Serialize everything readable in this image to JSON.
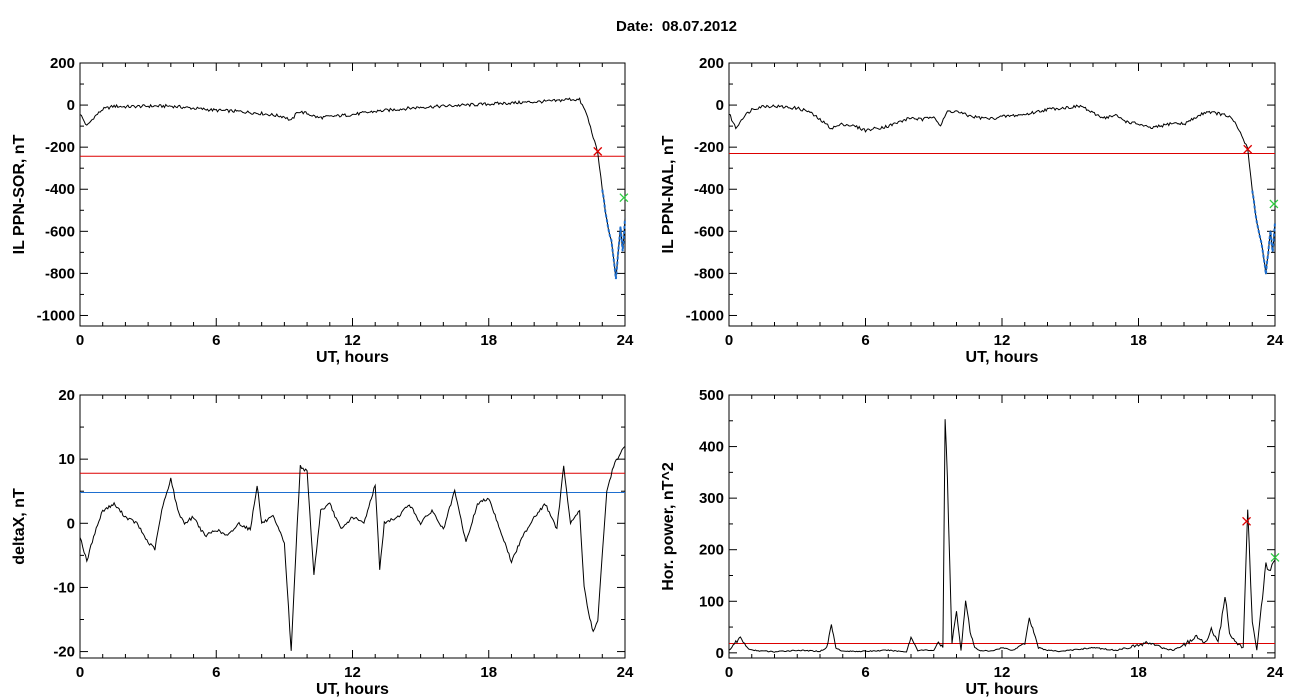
{
  "title": "Date:  08.07.2012",
  "colors": {
    "trace": "#000000",
    "threshold": "#dd0000",
    "blue_line": "#1e6fd0",
    "marker_red": "#dd0000",
    "marker_green": "#2ecc40"
  },
  "chart_data": [
    {
      "type": "line",
      "id": "sor",
      "xlabel": "UT, hours",
      "ylabel": "IL PPN-SOR, nT",
      "xlim": [
        0,
        24
      ],
      "ylim": [
        -1050,
        200
      ],
      "xticks": [
        0,
        6,
        12,
        18,
        24
      ],
      "yticks": [
        200,
        0,
        -200,
        -400,
        -600,
        -800,
        -1000
      ],
      "xtick_labels": [
        "0",
        "6",
        "12",
        "18",
        "24"
      ],
      "ytick_labels": [
        "200",
        "0",
        "-200",
        "-400",
        "-600",
        "-800",
        "-1000"
      ],
      "grid": false,
      "threshold": -243,
      "series": [
        {
          "x": [
            0,
            0.3,
            0.6,
            1,
            1.5,
            2,
            3,
            4,
            5,
            6,
            7,
            8,
            9,
            9.3,
            9.6,
            10,
            10.5,
            11,
            12,
            13,
            14,
            15,
            16,
            17,
            18,
            19,
            20,
            21,
            21.5,
            22,
            22.3,
            22.6,
            22.8,
            23,
            23.2,
            23.4,
            23.6,
            23.7,
            23.8,
            23.9,
            24
          ],
          "y": [
            -40,
            -100,
            -60,
            -20,
            -5,
            -8,
            -5,
            -5,
            -15,
            -25,
            -30,
            -40,
            -55,
            -75,
            -30,
            -40,
            -60,
            -55,
            -45,
            -30,
            -20,
            -10,
            -5,
            0,
            5,
            10,
            15,
            20,
            28,
            25,
            -40,
            -150,
            -230,
            -400,
            -550,
            -650,
            -820,
            -700,
            -580,
            -700,
            -540
          ]
        }
      ],
      "markers": [
        {
          "x": 22.8,
          "y": -220,
          "symbol": "x",
          "color": "red"
        },
        {
          "x": 23.95,
          "y": -440,
          "symbol": "x",
          "color": "green"
        }
      ]
    },
    {
      "type": "line",
      "id": "nal",
      "xlabel": "UT, hours",
      "ylabel": "IL PPN-NAL, nT",
      "xlim": [
        0,
        24
      ],
      "ylim": [
        -1050,
        200
      ],
      "xticks": [
        0,
        6,
        12,
        18,
        24
      ],
      "yticks": [
        200,
        0,
        -200,
        -400,
        -600,
        -800,
        -1000
      ],
      "xtick_labels": [
        "0",
        "6",
        "12",
        "18",
        "24"
      ],
      "ytick_labels": [
        "200",
        "0",
        "-200",
        "-400",
        "-600",
        "-800",
        "-1000"
      ],
      "grid": false,
      "threshold": -230,
      "series": [
        {
          "x": [
            0,
            0.3,
            0.6,
            1,
            1.5,
            2,
            2.5,
            3,
            3.5,
            4,
            4.5,
            5,
            5.5,
            6,
            6.5,
            7,
            7.5,
            8,
            8.5,
            9,
            9.3,
            9.6,
            10,
            10.5,
            11,
            11.5,
            12,
            13,
            14,
            15,
            15.5,
            16,
            16.5,
            17,
            17.5,
            18,
            18.5,
            19,
            19.5,
            20,
            20.5,
            21,
            21.5,
            22,
            22.3,
            22.6,
            22.8,
            23,
            23.2,
            23.4,
            23.6,
            23.7,
            23.8,
            23.9,
            24
          ],
          "y": [
            -40,
            -110,
            -60,
            -20,
            -5,
            -5,
            -10,
            -15,
            -30,
            -70,
            -110,
            -90,
            -100,
            -120,
            -110,
            -100,
            -80,
            -60,
            -70,
            -50,
            -100,
            -30,
            -30,
            -50,
            -60,
            -65,
            -55,
            -45,
            -20,
            -10,
            -5,
            -40,
            -60,
            -50,
            -80,
            -90,
            -110,
            -100,
            -85,
            -90,
            -60,
            -30,
            -40,
            -55,
            -95,
            -160,
            -210,
            -400,
            -560,
            -650,
            -800,
            -700,
            -600,
            -700,
            -560
          ]
        }
      ],
      "markers": [
        {
          "x": 22.8,
          "y": -210,
          "symbol": "x",
          "color": "red"
        },
        {
          "x": 23.95,
          "y": -470,
          "symbol": "x",
          "color": "green"
        }
      ]
    },
    {
      "type": "line",
      "id": "deltax",
      "xlabel": "UT, hours",
      "ylabel": "deltaX, nT",
      "xlim": [
        0,
        24
      ],
      "ylim": [
        -21,
        20
      ],
      "xticks": [
        0,
        6,
        12,
        18,
        24
      ],
      "yticks": [
        20,
        10,
        0,
        -10,
        -20
      ],
      "xtick_labels": [
        "0",
        "6",
        "12",
        "18",
        "24"
      ],
      "ytick_labels": [
        "20",
        "10",
        "0",
        "-10",
        "-20"
      ],
      "grid": false,
      "threshold": 7.8,
      "threshold2": 4.8,
      "series": [
        {
          "x": [
            0,
            0.3,
            0.6,
            1,
            1.5,
            2,
            2.5,
            3,
            3.3,
            3.6,
            4,
            4.3,
            4.6,
            5,
            5.5,
            6,
            6.5,
            7,
            7.5,
            7.8,
            8,
            8.5,
            9,
            9.3,
            9.5,
            9.7,
            10,
            10.3,
            10.6,
            11,
            11.5,
            12,
            12.5,
            13,
            13.2,
            13.4,
            14,
            14.5,
            15,
            15.5,
            16,
            16.5,
            17,
            17.5,
            18,
            18.5,
            19,
            19.5,
            20,
            20.5,
            21,
            21.3,
            21.6,
            22,
            22.2,
            22.4,
            22.6,
            22.8,
            23,
            23.2,
            23.5,
            23.8,
            24
          ],
          "y": [
            -2,
            -6,
            -2,
            2,
            3,
            1,
            0,
            -3,
            -4,
            2,
            7,
            2,
            0,
            1,
            -2,
            -1,
            -2,
            0,
            -1,
            6,
            0,
            1,
            -3,
            -20,
            -5,
            9,
            8,
            -8,
            2,
            3,
            -1,
            1,
            0,
            6,
            -7,
            0,
            1,
            3,
            0,
            2,
            -1,
            5,
            -3,
            3,
            4,
            -1,
            -6,
            -2,
            1,
            3,
            -1,
            9,
            0,
            2,
            -10,
            -14,
            -17,
            -15,
            -5,
            5,
            9,
            11,
            12
          ]
        }
      ],
      "markers": []
    },
    {
      "type": "line",
      "id": "power",
      "xlabel": "UT, hours",
      "ylabel": "Hor. power, nT^2",
      "xlim": [
        0,
        24
      ],
      "ylim": [
        -10,
        500
      ],
      "xticks": [
        0,
        6,
        12,
        18,
        24
      ],
      "yticks": [
        500,
        400,
        300,
        200,
        100,
        0
      ],
      "xtick_labels": [
        "0",
        "6",
        "12",
        "18",
        "24"
      ],
      "ytick_labels": [
        "500",
        "400",
        "300",
        "200",
        "100",
        "0"
      ],
      "grid": false,
      "threshold": 18,
      "series": [
        {
          "x": [
            0,
            0.3,
            0.5,
            0.8,
            1,
            2,
            3,
            4,
            4.3,
            4.5,
            4.7,
            5,
            6,
            7,
            7.8,
            8,
            8.3,
            9,
            9.2,
            9.4,
            9.5,
            9.6,
            9.8,
            10,
            10.2,
            10.4,
            10.6,
            10.8,
            11,
            11.5,
            12,
            12.5,
            13,
            13.2,
            13.4,
            13.6,
            14,
            14.5,
            15,
            16,
            17,
            17.5,
            18,
            18.5,
            19,
            19.5,
            20,
            20.5,
            21,
            21.2,
            21.5,
            21.8,
            22,
            22.3,
            22.6,
            22.8,
            23,
            23.2,
            23.4,
            23.6,
            23.8,
            24
          ],
          "y": [
            5,
            20,
            30,
            10,
            5,
            2,
            5,
            3,
            10,
            55,
            10,
            3,
            3,
            5,
            2,
            30,
            5,
            5,
            20,
            10,
            450,
            340,
            20,
            80,
            5,
            100,
            40,
            10,
            5,
            3,
            10,
            5,
            20,
            70,
            40,
            10,
            5,
            3,
            5,
            10,
            5,
            10,
            15,
            20,
            10,
            5,
            15,
            30,
            20,
            50,
            20,
            110,
            40,
            20,
            10,
            280,
            60,
            5,
            90,
            170,
            160,
            180
          ]
        }
      ],
      "markers": [
        {
          "x": 22.75,
          "y": 255,
          "symbol": "x",
          "color": "red"
        },
        {
          "x": 24,
          "y": 185,
          "symbol": "x",
          "color": "green"
        }
      ]
    }
  ]
}
